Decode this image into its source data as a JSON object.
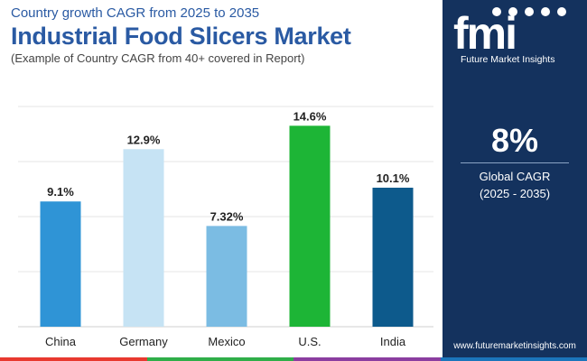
{
  "header": {
    "subtitle": "Country growth CAGR from 2025 to 2035",
    "title": "Industrial Food Slicers Market",
    "note": "(Example of Country CAGR from 40+ covered in Report)"
  },
  "sidepanel": {
    "logo_text": "fmi",
    "logo_name": "Future Market Insights",
    "kpi_value": "8%",
    "kpi_label_line1": "Global CAGR",
    "kpi_label_line2": "(2025 - 2035)",
    "website": "www.futuremarketinsights.com"
  },
  "colors": {
    "title": "#2a5aa3",
    "panel": "#14325e",
    "bottom_bar": [
      "#e8392f",
      "#2fae49",
      "#8b3da0",
      "#1b75bb"
    ]
  },
  "chart_data": {
    "type": "bar",
    "categories": [
      "China",
      "Germany",
      "Mexico",
      "U.S.",
      "India"
    ],
    "values": [
      9.1,
      12.9,
      7.32,
      14.6,
      10.1
    ],
    "value_labels": [
      "9.1%",
      "12.9%",
      "7.32%",
      "14.6%",
      "10.1%"
    ],
    "bar_colors": [
      "#2f94d6",
      "#c6e3f4",
      "#7bbce3",
      "#1db536",
      "#0d5a8c"
    ],
    "ylim": [
      0,
      16
    ],
    "grid": true,
    "title": "",
    "xlabel": "",
    "ylabel": ""
  }
}
